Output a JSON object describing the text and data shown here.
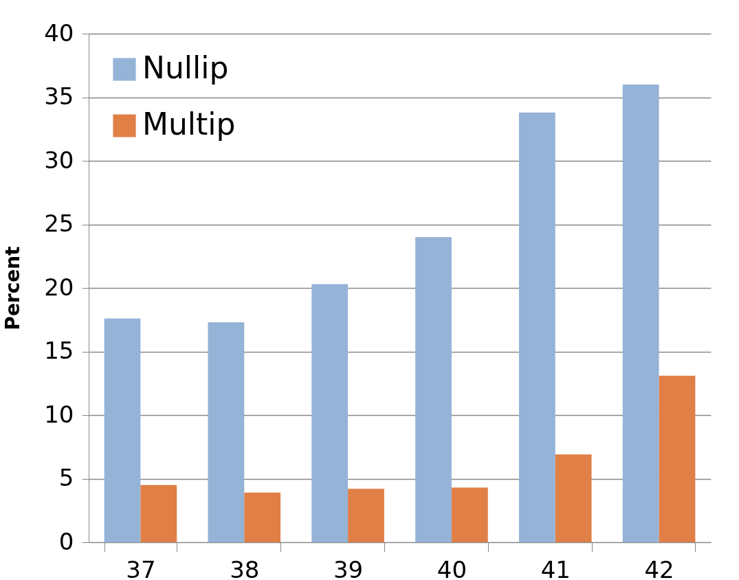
{
  "chart_data": {
    "type": "bar",
    "ylabel": "Percent",
    "categories": [
      "37",
      "38",
      "39",
      "40",
      "41",
      "42"
    ],
    "series": [
      {
        "name": "Nullip",
        "color": "#95b3d7",
        "values": [
          17.6,
          17.3,
          20.3,
          24.0,
          33.8,
          36.0
        ]
      },
      {
        "name": "Multip",
        "color": "#e07f46",
        "values": [
          4.5,
          3.9,
          4.2,
          4.3,
          6.9,
          13.1
        ]
      }
    ],
    "ylim": [
      0,
      40
    ],
    "yticks": [
      0,
      5,
      10,
      15,
      20,
      25,
      30,
      35,
      40
    ],
    "grid": "y",
    "legend": "top left"
  }
}
